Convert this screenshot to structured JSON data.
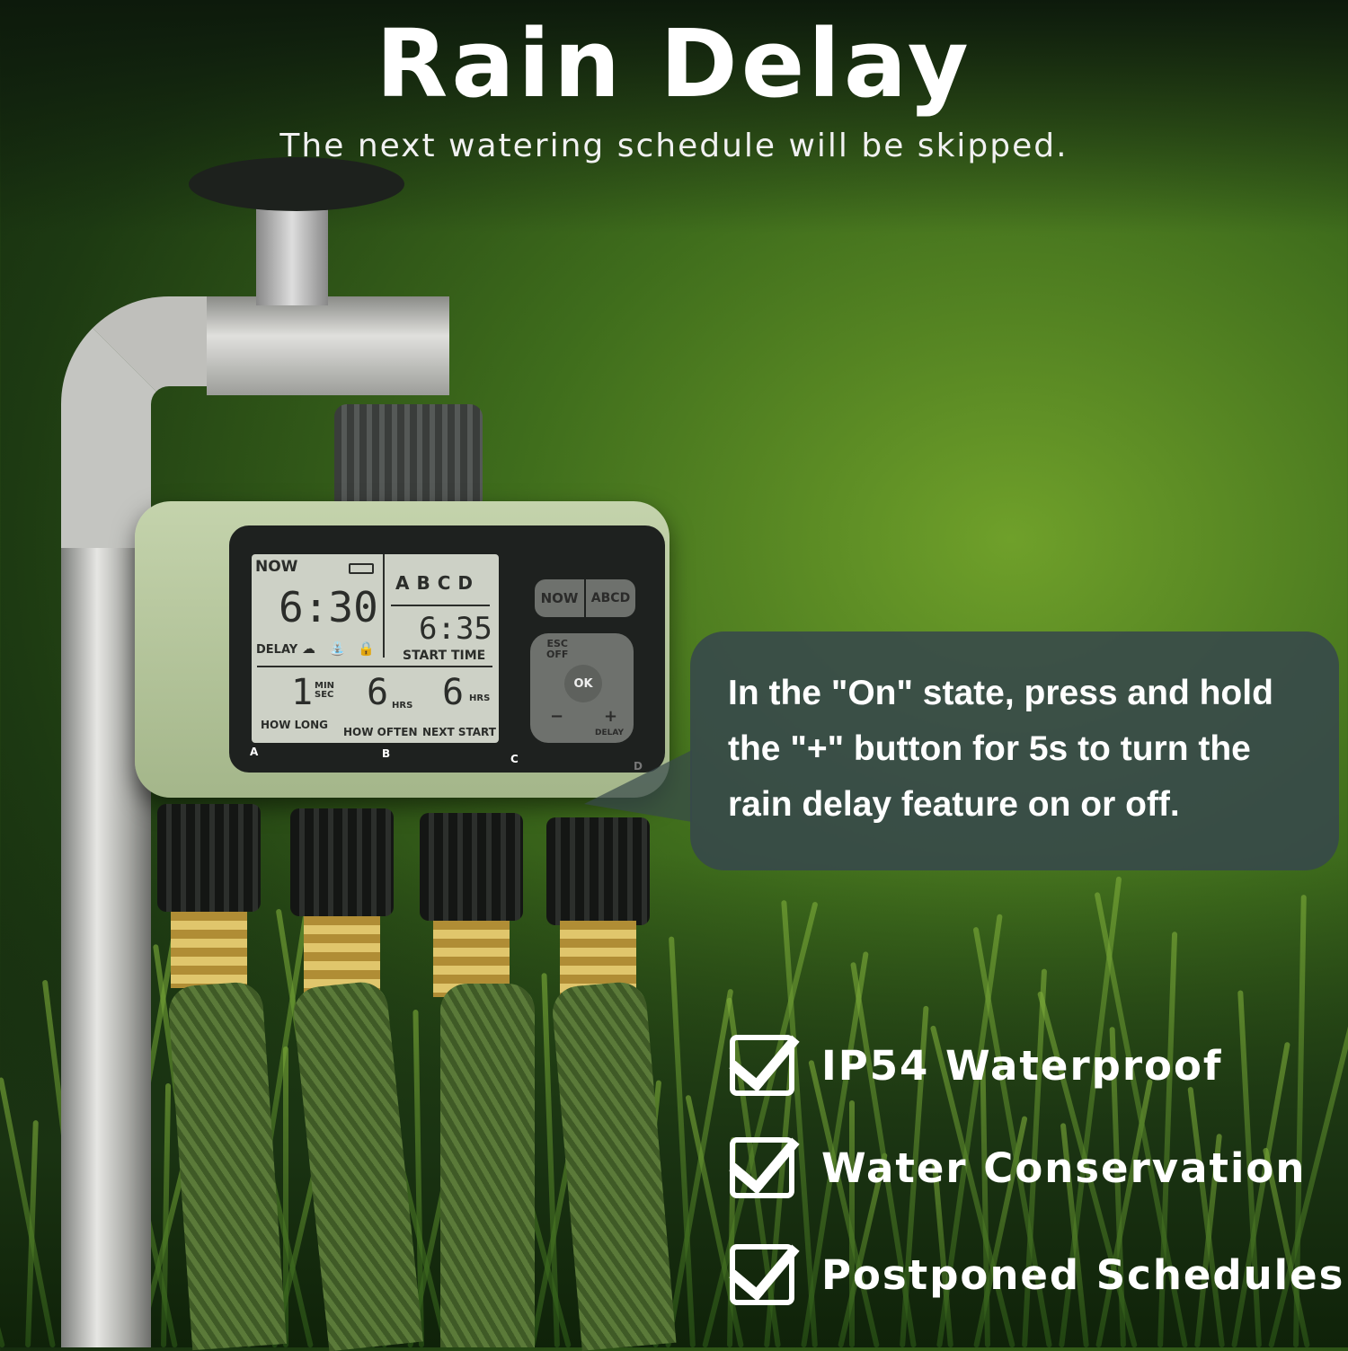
{
  "header": {
    "title": "Rain Delay",
    "subtitle": "The next watering schedule will be skipped."
  },
  "lcd": {
    "now_label": "NOW",
    "now_time": "6:30",
    "delay_label": "DELAY",
    "zones": [
      "A",
      "B",
      "C",
      "D"
    ],
    "start_time": "6:35",
    "start_time_label": "START TIME",
    "how_long_value": "1",
    "how_long_units": "MIN SEC",
    "how_long_label": "HOW LONG",
    "how_often_value": "6",
    "how_often_units": "HRS",
    "how_often_label": "HOW OFTEN",
    "next_start_value": "6",
    "next_start_units": "HRS",
    "next_start_label": "NEXT START"
  },
  "buttons": {
    "now": "NOW",
    "abcd": "ABCD",
    "esc": "ESC",
    "off": "OFF",
    "ok": "OK",
    "minus": "−",
    "plus": "+",
    "delay": "DELAY"
  },
  "ports": [
    "A",
    "B",
    "C",
    "D"
  ],
  "callout": {
    "text": "In the \"On\" state, press and hold the \"+\" button for 5s to turn the rain delay feature on or off."
  },
  "features": [
    {
      "label": "IP54 Waterproof",
      "icon": "checkbox-icon"
    },
    {
      "label": "Water Conservation",
      "icon": "checkbox-icon"
    },
    {
      "label": "Postponed Schedules",
      "icon": "checkbox-icon"
    }
  ]
}
